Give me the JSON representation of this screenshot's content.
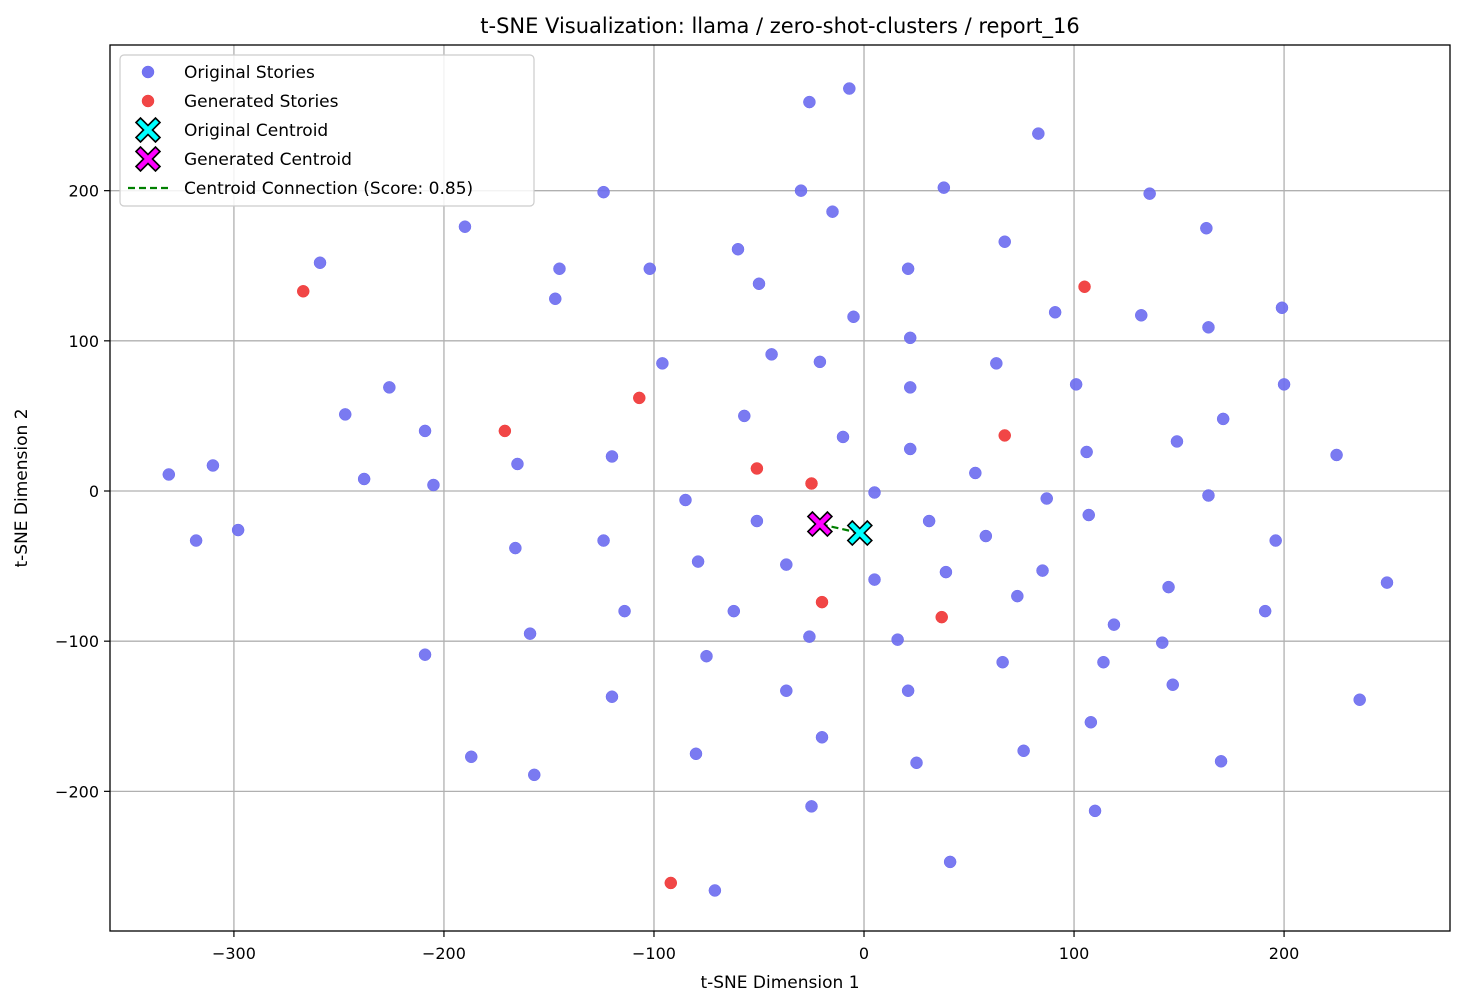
{
  "chart_data": {
    "type": "scatter",
    "title": "t-SNE Visualization: llama / zero-shot-clusters / report_16",
    "xlabel": "t-SNE Dimension 1",
    "ylabel": "t-SNE Dimension 2",
    "xlim": [
      -359,
      279
    ],
    "ylim": [
      -293,
      297
    ],
    "xticks": [
      -300,
      -200,
      -100,
      0,
      100,
      200
    ],
    "yticks": [
      -200,
      -100,
      0,
      100,
      200
    ],
    "xtick_labels": [
      "−300",
      "−200",
      "−100",
      "0",
      "100",
      "200"
    ],
    "ytick_labels": [
      "−200",
      "−100",
      "0",
      "100",
      "200"
    ],
    "grid": true,
    "legend_position": "upper-left",
    "series": [
      {
        "name": "Original Stories",
        "color": "#6b6bf0",
        "marker": "circle",
        "points": [
          [
            -26,
            259
          ],
          [
            -7,
            268
          ],
          [
            83,
            238
          ],
          [
            -30,
            200
          ],
          [
            -15,
            186
          ],
          [
            38,
            202
          ],
          [
            136,
            198
          ],
          [
            -124,
            199
          ],
          [
            -190,
            176
          ],
          [
            163,
            175
          ],
          [
            67,
            166
          ],
          [
            -60,
            161
          ],
          [
            21,
            148
          ],
          [
            -259,
            152
          ],
          [
            -145,
            148
          ],
          [
            -102,
            148
          ],
          [
            -50,
            138
          ],
          [
            -147,
            128
          ],
          [
            91,
            119
          ],
          [
            -5,
            116
          ],
          [
            132,
            117
          ],
          [
            199,
            122
          ],
          [
            164,
            109
          ],
          [
            22,
            102
          ],
          [
            -44,
            91
          ],
          [
            -21,
            86
          ],
          [
            -96,
            85
          ],
          [
            63,
            85
          ],
          [
            -226,
            69
          ],
          [
            22,
            69
          ],
          [
            101,
            71
          ],
          [
            200,
            71
          ],
          [
            -247,
            51
          ],
          [
            -57,
            50
          ],
          [
            171,
            48
          ],
          [
            -209,
            40
          ],
          [
            -10,
            36
          ],
          [
            149,
            33
          ],
          [
            22,
            28
          ],
          [
            106,
            26
          ],
          [
            225,
            24
          ],
          [
            -120,
            23
          ],
          [
            -165,
            18
          ],
          [
            -310,
            17
          ],
          [
            -331,
            11
          ],
          [
            53,
            12
          ],
          [
            -238,
            8
          ],
          [
            -205,
            4
          ],
          [
            5,
            -1
          ],
          [
            -85,
            -6
          ],
          [
            87,
            -5
          ],
          [
            164,
            -3
          ],
          [
            -51,
            -20
          ],
          [
            31,
            -20
          ],
          [
            107,
            -16
          ],
          [
            -298,
            -26
          ],
          [
            -318,
            -33
          ],
          [
            -124,
            -33
          ],
          [
            196,
            -33
          ],
          [
            58,
            -30
          ],
          [
            -166,
            -38
          ],
          [
            -79,
            -47
          ],
          [
            -37,
            -49
          ],
          [
            39,
            -54
          ],
          [
            85,
            -53
          ],
          [
            249,
            -61
          ],
          [
            5,
            -59
          ],
          [
            145,
            -64
          ],
          [
            73,
            -70
          ],
          [
            -114,
            -80
          ],
          [
            -62,
            -80
          ],
          [
            191,
            -80
          ],
          [
            119,
            -89
          ],
          [
            -159,
            -95
          ],
          [
            -26,
            -97
          ],
          [
            16,
            -99
          ],
          [
            142,
            -101
          ],
          [
            -209,
            -109
          ],
          [
            -75,
            -110
          ],
          [
            66,
            -114
          ],
          [
            114,
            -114
          ],
          [
            -120,
            -137
          ],
          [
            -37,
            -133
          ],
          [
            21,
            -133
          ],
          [
            147,
            -129
          ],
          [
            236,
            -139
          ],
          [
            108,
            -154
          ],
          [
            -20,
            -164
          ],
          [
            -80,
            -175
          ],
          [
            76,
            -173
          ],
          [
            -187,
            -177
          ],
          [
            25,
            -181
          ],
          [
            170,
            -180
          ],
          [
            -157,
            -189
          ],
          [
            -25,
            -210
          ],
          [
            110,
            -213
          ],
          [
            41,
            -247
          ],
          [
            -71,
            -266
          ]
        ]
      },
      {
        "name": "Generated Stories",
        "color": "#f03c3c",
        "marker": "circle",
        "points": [
          [
            -267,
            133
          ],
          [
            105,
            136
          ],
          [
            -107,
            62
          ],
          [
            -171,
            40
          ],
          [
            67,
            37
          ],
          [
            -51,
            15
          ],
          [
            -25,
            5
          ],
          [
            -20,
            -74
          ],
          [
            37,
            -84
          ],
          [
            -92,
            -261
          ]
        ]
      },
      {
        "name": "Original Centroid",
        "color": "#00ffff",
        "marker": "x-filled",
        "points": [
          [
            -2,
            -28
          ]
        ]
      },
      {
        "name": "Generated Centroid",
        "color": "#ff00ff",
        "marker": "x-filled",
        "points": [
          [
            -21,
            -22
          ]
        ]
      },
      {
        "name": "Centroid Connection (Score: 0.85)",
        "color": "#008000",
        "marker": "dashed-line",
        "points": [
          [
            -2,
            -28
          ],
          [
            -21,
            -22
          ]
        ]
      }
    ]
  }
}
